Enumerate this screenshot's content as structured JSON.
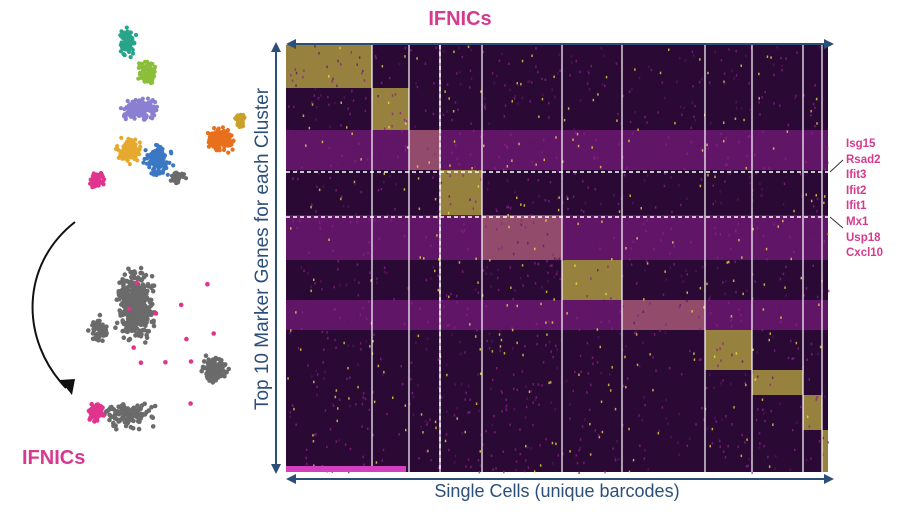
{
  "title": "IFNICs",
  "annotations": {
    "cluster_label": "IFNICs",
    "marker_genes": [
      "Isg15",
      "Rsad2",
      "Ifit3",
      "Ifit2",
      "Ifit1",
      "Mx1",
      "Usp18",
      "Cxcl10"
    ]
  },
  "colors": {
    "accent": "#d63a8f",
    "axis": "#2c4f7a",
    "heat_low": "#2b0935",
    "heat_mid": "#8e1f8e",
    "heat_high": "#f0e445",
    "highlight_cluster": "#e0348f",
    "other_cells": "#6b6b6b",
    "cluster_palette": [
      "#27a58a",
      "#8bbf3a",
      "#8a7fd0",
      "#e6a92e",
      "#3b78c4",
      "#e86f1c",
      "#c8a12a",
      "#e0348f",
      "#6b6b6b"
    ]
  },
  "chart_data": [
    {
      "type": "heatmap",
      "title": "IFNICs",
      "xlabel": "Single Cells (unique barcodes)",
      "ylabel": "Top 10 Marker Genes for each Cluster",
      "x_axis": "cell clusters separated by vertical white lines",
      "y_axis": "marker genes grouped by cluster",
      "highlighted_rows": [
        "Isg15",
        "Rsad2",
        "Ifit3",
        "Ifit2",
        "Ifit1",
        "Mx1",
        "Usp18",
        "Cxcl10"
      ],
      "legend": "none",
      "grid": false
    },
    {
      "type": "scatter",
      "title": "",
      "description_label": "t-SNE colored by cluster",
      "legend": "none"
    },
    {
      "type": "scatter",
      "title": "",
      "highlight_label": "IFNICs",
      "legend": "none"
    }
  ]
}
